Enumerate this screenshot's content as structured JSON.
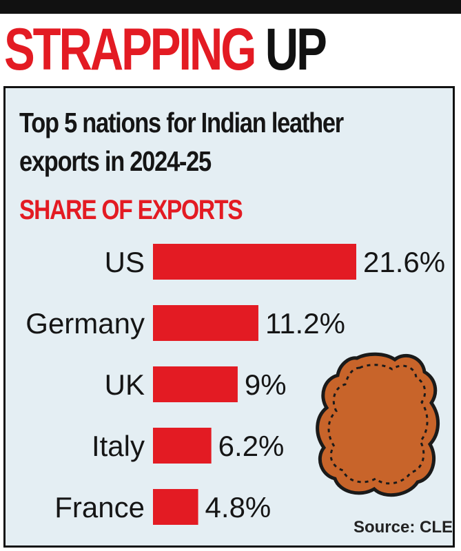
{
  "headline": {
    "word1": "STRAPPING",
    "word2": "UP"
  },
  "subtitle": {
    "line1": "Top 5 nations for Indian leather",
    "line2": "exports in 2024-25"
  },
  "section_label": "SHARE OF EXPORTS",
  "source": "Source: CLE",
  "icon": "leather-hide-icon",
  "colors": {
    "accent": "#e31b23",
    "panel": "#e4eef3",
    "hide": "#c8642a",
    "hide_outline": "#1a1a1a"
  },
  "chart_data": {
    "type": "bar",
    "orientation": "horizontal",
    "categories": [
      "US",
      "Germany",
      "UK",
      "Italy",
      "France"
    ],
    "values": [
      21.6,
      11.2,
      9,
      6.2,
      4.8
    ],
    "value_labels": [
      "21.6%",
      "11.2%",
      "9%",
      "6.2%",
      "4.8%"
    ],
    "unit": "%",
    "title": "SHARE OF EXPORTS",
    "xlabel": "",
    "ylabel": "",
    "grid": false
  }
}
